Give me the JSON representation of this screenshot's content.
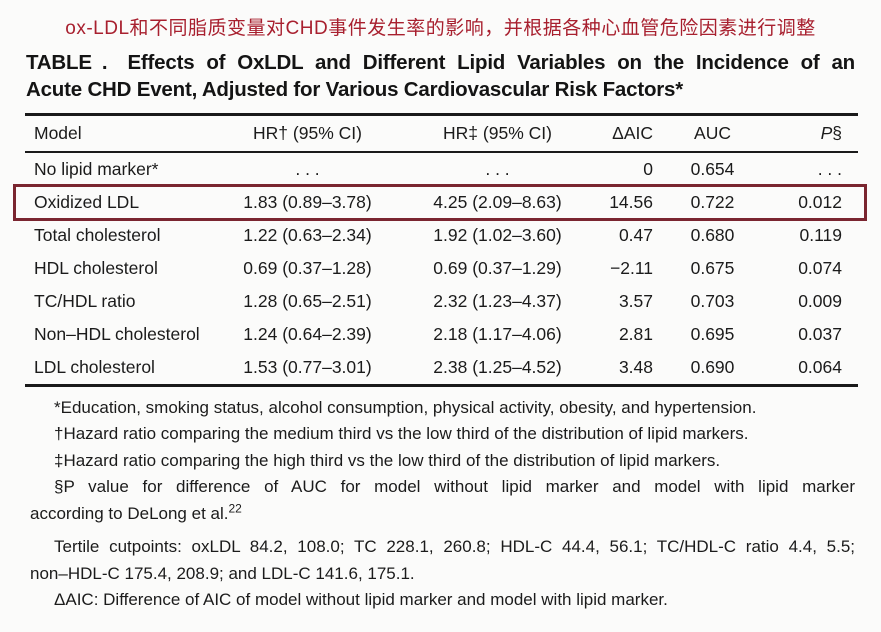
{
  "caption_zh": "ox-LDL和不同脂质变量对CHD事件发生率的影响，并根据各种心血管危险因素进行调整",
  "title": {
    "line1": "TABLE .  Effects of OxLDL and Different Lipid Variables on the Incidence of an",
    "line2": "Acute CHD Event, Adjusted for Various Cardiovascular Risk Factors*"
  },
  "table": {
    "headers": [
      "Model",
      "HR† (95% CI)",
      "HR‡ (95% CI)",
      "ΔAIC",
      "AUC"
    ],
    "p_header_italic": "P",
    "p_header_mark": "§",
    "highlighted_row": "Oxidized LDL",
    "rows": [
      [
        "No lipid marker*",
        ". . .",
        ". . .",
        "0",
        "0.654",
        ". . ."
      ],
      [
        "Oxidized LDL",
        "1.83 (0.89–3.78)",
        "4.25 (2.09–8.63)",
        "14.56",
        "0.722",
        "0.012"
      ],
      [
        "Total cholesterol",
        "1.22 (0.63–2.34)",
        "1.92 (1.02–3.60)",
        "0.47",
        "0.680",
        "0.119"
      ],
      [
        "HDL cholesterol",
        "0.69 (0.37–1.28)",
        "0.69 (0.37–1.29)",
        "−2.11",
        "0.675",
        "0.074"
      ],
      [
        "TC/HDL ratio",
        "1.28 (0.65–2.51)",
        "2.32 (1.23–4.37)",
        "3.57",
        "0.703",
        "0.009"
      ],
      [
        "Non–HDL cholesterol",
        "1.24 (0.64–2.39)",
        "2.18 (1.17–4.06)",
        "2.81",
        "0.695",
        "0.037"
      ],
      [
        "LDL cholesterol",
        "1.53 (0.77–3.01)",
        "2.38 (1.25–4.52)",
        "3.48",
        "0.690",
        "0.064"
      ]
    ]
  },
  "footnotes": {
    "lines": [
      {
        "text": "*Education, smoking status, alcohol consumption, physical activity, obesity, and hypertension."
      },
      {
        "text": "†Hazard ratio comparing the medium third vs the low third of the distribution of lipid markers."
      },
      {
        "text": "‡Hazard ratio comparing the high third vs the low third of the distribution of lipid markers."
      },
      {
        "text": "§P value for difference of AUC for model without lipid marker and model with lipid marker"
      },
      {
        "text": "according to DeLong et al.",
        "ref": "22"
      },
      {
        "text": "Tertile cutpoints: oxLDL 84.2, 108.0; TC 228.1, 260.8; HDL-C 44.4, 56.1; TC/HDL-C ratio 4.4, 5.5;"
      },
      {
        "text": "non–HDL-C 175.4, 208.9; and LDL-C 141.6, 175.1."
      },
      {
        "text": "ΔAIC: Difference of AIC of model without lipid marker and model with lipid marker."
      }
    ]
  },
  "colors": {
    "caption_red": "#a8202f",
    "highlight_border": "#7a2530",
    "text": "#1b1b1b",
    "rule": "#1a1a1a",
    "background": "#fbfbfa"
  }
}
